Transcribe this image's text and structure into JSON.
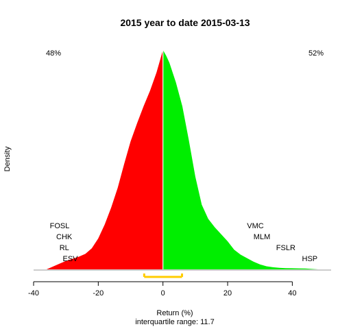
{
  "chart_data": {
    "type": "area",
    "title": "2015  year to date 2015-03-13",
    "xlabel": "Return (%)",
    "ylabel": "Density",
    "subtitle": "interquartile range: 11.7",
    "xlim": [
      -40,
      52
    ],
    "x_ticks": [
      -40,
      -20,
      0,
      20,
      40
    ],
    "split_at": 0,
    "negative_share": "48%",
    "positive_share": "52%",
    "colors": {
      "negative": "#ff0000",
      "positive": "#00ee00",
      "iqr": "#ffcc00",
      "neg_text": "#ff0000",
      "pos_text": "#008800"
    },
    "iqr_range": [
      -5.8,
      5.9
    ],
    "density": {
      "x": [
        -36,
        -34,
        -32,
        -30,
        -28,
        -26,
        -24,
        -22,
        -20,
        -18,
        -16,
        -14,
        -12,
        -10,
        -8,
        -6,
        -4,
        -2,
        0,
        1,
        2,
        3,
        4,
        6,
        8,
        10,
        12,
        14,
        16,
        18,
        20,
        22,
        24,
        26,
        28,
        30,
        32,
        34,
        36,
        38,
        40,
        42,
        44,
        46,
        48
      ],
      "y": [
        0.0,
        0.002,
        0.004,
        0.006,
        0.0075,
        0.009,
        0.011,
        0.015,
        0.022,
        0.032,
        0.044,
        0.058,
        0.075,
        0.091,
        0.104,
        0.116,
        0.127,
        0.14,
        0.156,
        0.152,
        0.147,
        0.14,
        0.133,
        0.116,
        0.092,
        0.066,
        0.046,
        0.036,
        0.03,
        0.025,
        0.02,
        0.014,
        0.0105,
        0.008,
        0.0055,
        0.0035,
        0.0022,
        0.0015,
        0.0011,
        0.0009,
        0.0008,
        0.0007,
        0.0006,
        0.0003,
        0.0
      ]
    },
    "tickers_left": [
      {
        "label": "FOSL",
        "x": -35
      },
      {
        "label": "CHK",
        "x": -33
      },
      {
        "label": "RL",
        "x": -32
      },
      {
        "label": "ESV",
        "x": -31
      }
    ],
    "tickers_right": [
      {
        "label": "VMC",
        "x": 26
      },
      {
        "label": "MLM",
        "x": 28
      },
      {
        "label": "FSLR",
        "x": 35
      },
      {
        "label": "HSP",
        "x": 43
      }
    ]
  }
}
